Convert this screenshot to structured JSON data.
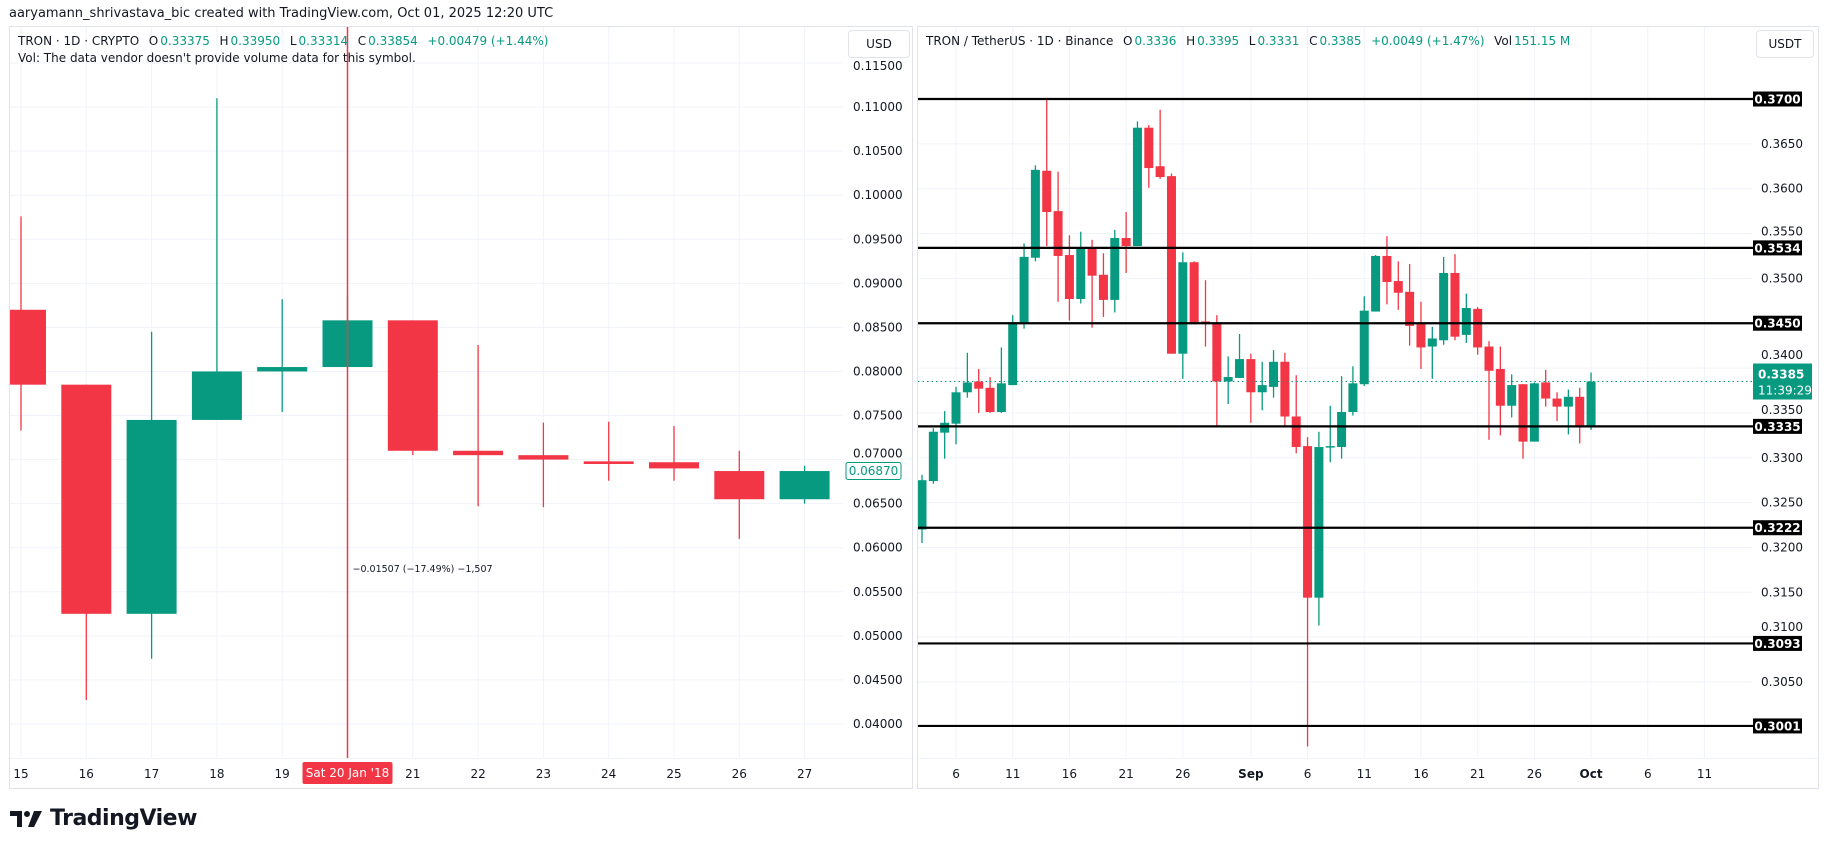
{
  "credit": "aaryamann_shrivastava_bic created with TradingView.com, Oct 01, 2025 12:20 UTC",
  "brand": "TradingView",
  "colors": {
    "up": "#089981",
    "down": "#f23645",
    "level": "#000000",
    "crosshair": "#f23645"
  },
  "left": {
    "header": {
      "symbol": "TRON · 1D · CRYPTO",
      "o_label": "O",
      "o": "0.33375",
      "h_label": "H",
      "h": "0.33950",
      "l_label": "L",
      "l": "0.33314",
      "c_label": "C",
      "c": "0.33854",
      "change": "+0.00479 (+1.44%)"
    },
    "vol_note": "Vol: The data vendor doesn't provide volume data for this symbol.",
    "currency": "USD",
    "last_price": "0.06870",
    "crosshair_date": "Sat 20 Jan '18",
    "crosshair_note": "−0.01507 (−17.49%) −1,507"
  },
  "right": {
    "header": {
      "symbol": "TRON / TetherUS · 1D · Binance",
      "o_label": "O",
      "o": "0.3336",
      "h_label": "H",
      "h": "0.3395",
      "l_label": "L",
      "l": "0.3331",
      "c_label": "C",
      "c": "0.3385",
      "change": "+0.0049 (+1.47%)",
      "vol_label": "Vol",
      "vol": "151.15 M"
    },
    "currency": "USDT",
    "last_price": "0.3385",
    "countdown": "11:39:29"
  },
  "chart_data": [
    {
      "type": "candlestick",
      "interval": "1D",
      "ylim": [
        0.036,
        0.118
      ],
      "grid": true,
      "y_ticks": [
        "0.11500",
        "0.11000",
        "0.10500",
        "0.10000",
        "0.09500",
        "0.09000",
        "0.08500",
        "0.08000",
        "0.07500",
        "0.07000",
        "0.06500",
        "0.06000",
        "0.05500",
        "0.05000",
        "0.04500",
        "0.04000"
      ],
      "x_labels": [
        {
          "day": 15,
          "t": "15"
        },
        {
          "day": 16,
          "t": "16"
        },
        {
          "day": 17,
          "t": "17"
        },
        {
          "day": 18,
          "t": "18"
        },
        {
          "day": 19,
          "t": "19"
        },
        {
          "day": 21,
          "t": "21"
        },
        {
          "day": 22,
          "t": "22"
        },
        {
          "day": 23,
          "t": "23"
        },
        {
          "day": 24,
          "t": "24"
        },
        {
          "day": 25,
          "t": "25"
        },
        {
          "day": 26,
          "t": "26"
        },
        {
          "day": 27,
          "t": "27"
        }
      ],
      "crosshair_day": 20,
      "candles": [
        [
          15,
          0.087,
          0.0976,
          0.0733,
          0.0785
        ],
        [
          16,
          0.0785,
          0.0785,
          0.0427,
          0.0525
        ],
        [
          17,
          0.0525,
          0.0845,
          0.0474,
          0.0745
        ],
        [
          18,
          0.0745,
          0.111,
          0.0745,
          0.08
        ],
        [
          19,
          0.08,
          0.0882,
          0.0754,
          0.0805
        ],
        [
          20,
          0.0805,
          0.0886,
          0.0805,
          0.0858
        ],
        [
          21,
          0.0858,
          0.0858,
          0.0705,
          0.071
        ],
        [
          22,
          0.071,
          0.083,
          0.0647,
          0.0705
        ],
        [
          23,
          0.0705,
          0.0742,
          0.0646,
          0.07
        ],
        [
          24,
          0.0698,
          0.0743,
          0.0676,
          0.0695
        ],
        [
          25,
          0.0697,
          0.0738,
          0.0676,
          0.069
        ],
        [
          26,
          0.0687,
          0.071,
          0.061,
          0.0655
        ],
        [
          27,
          0.0655,
          0.0693,
          0.065,
          0.0687
        ]
      ]
    },
    {
      "type": "candlestick",
      "interval": "1D",
      "ylim": [
        0.2932,
        0.3777
      ],
      "grid": true,
      "y_ticks": [
        "0.3650",
        "0.3600",
        "0.3550",
        "0.3500",
        "0.3400",
        "0.3350",
        "0.3300",
        "0.3250",
        "0.3200",
        "0.3150",
        "0.3100",
        "0.3050"
      ],
      "levels": [
        "0.3700",
        "0.3534",
        "0.3450",
        "0.3335",
        "0.3222",
        "0.3093",
        "0.3001"
      ],
      "x_labels": [
        {
          "date": "2025-08-06",
          "t": "6"
        },
        {
          "date": "2025-08-11",
          "t": "11"
        },
        {
          "date": "2025-08-16",
          "t": "16"
        },
        {
          "date": "2025-08-21",
          "t": "21"
        },
        {
          "date": "2025-08-26",
          "t": "26"
        },
        {
          "date": "2025-09-01",
          "t": "Sep"
        },
        {
          "date": "2025-09-06",
          "t": "6"
        },
        {
          "date": "2025-09-11",
          "t": "11"
        },
        {
          "date": "2025-09-16",
          "t": "16"
        },
        {
          "date": "2025-09-21",
          "t": "21"
        },
        {
          "date": "2025-09-26",
          "t": "26"
        },
        {
          "date": "2025-10-01",
          "t": "Oct"
        },
        {
          "date": "2025-10-06",
          "t": "6"
        },
        {
          "date": "2025-10-11",
          "t": "11"
        }
      ],
      "candles": [
        [
          "2025-08-03",
          0.322,
          0.3281,
          0.3205,
          0.3275
        ],
        [
          "2025-08-04",
          0.3274,
          0.3333,
          0.3271,
          0.3329
        ],
        [
          "2025-08-05",
          0.3328,
          0.3352,
          0.3299,
          0.3339
        ],
        [
          "2025-08-06",
          0.3338,
          0.3379,
          0.3315,
          0.3373
        ],
        [
          "2025-08-07",
          0.3373,
          0.3417,
          0.3367,
          0.3384
        ],
        [
          "2025-08-08",
          0.3385,
          0.3399,
          0.335,
          0.3377
        ],
        [
          "2025-08-09",
          0.3378,
          0.339,
          0.335,
          0.3351
        ],
        [
          "2025-08-10",
          0.3351,
          0.3423,
          0.335,
          0.3383
        ],
        [
          "2025-08-11",
          0.3381,
          0.3459,
          0.3381,
          0.3451
        ],
        [
          "2025-08-12",
          0.3451,
          0.3539,
          0.3444,
          0.3524
        ],
        [
          "2025-08-13",
          0.3523,
          0.3626,
          0.3519,
          0.3621
        ],
        [
          "2025-08-14",
          0.362,
          0.37,
          0.3536,
          0.3574
        ],
        [
          "2025-08-15",
          0.3575,
          0.3619,
          0.3474,
          0.3525
        ],
        [
          "2025-08-16",
          0.3526,
          0.3548,
          0.3453,
          0.3477
        ],
        [
          "2025-08-17",
          0.3477,
          0.3552,
          0.3472,
          0.3534
        ],
        [
          "2025-08-18",
          0.3533,
          0.3543,
          0.3445,
          0.3503
        ],
        [
          "2025-08-19",
          0.3504,
          0.3528,
          0.3457,
          0.3476
        ],
        [
          "2025-08-20",
          0.3476,
          0.3554,
          0.3462,
          0.3545
        ],
        [
          "2025-08-21",
          0.3545,
          0.3574,
          0.3506,
          0.3536
        ],
        [
          "2025-08-22",
          0.3536,
          0.3675,
          0.3536,
          0.3668
        ],
        [
          "2025-08-23",
          0.3668,
          0.3671,
          0.3601,
          0.3623
        ],
        [
          "2025-08-24",
          0.3625,
          0.3688,
          0.3611,
          0.3613
        ],
        [
          "2025-08-25",
          0.3614,
          0.3617,
          0.3416,
          0.3416
        ],
        [
          "2025-08-26",
          0.3416,
          0.3529,
          0.3388,
          0.3518
        ],
        [
          "2025-08-27",
          0.3518,
          0.3519,
          0.3449,
          0.3451
        ],
        [
          "2025-08-28",
          0.3452,
          0.3498,
          0.3424,
          0.3451
        ],
        [
          "2025-08-29",
          0.3451,
          0.3459,
          0.3335,
          0.3385
        ],
        [
          "2025-08-30",
          0.3385,
          0.3413,
          0.336,
          0.339
        ],
        [
          "2025-08-31",
          0.3389,
          0.3438,
          0.3389,
          0.341
        ],
        [
          "2025-09-01",
          0.341,
          0.3416,
          0.3339,
          0.3373
        ],
        [
          "2025-09-02",
          0.3373,
          0.3407,
          0.3353,
          0.3381
        ],
        [
          "2025-09-03",
          0.3379,
          0.342,
          0.3367,
          0.3407
        ],
        [
          "2025-09-04",
          0.3407,
          0.3417,
          0.3336,
          0.3346
        ],
        [
          "2025-09-05",
          0.3346,
          0.3392,
          0.3305,
          0.3312
        ],
        [
          "2025-09-06",
          0.3313,
          0.3323,
          0.2978,
          0.3144
        ],
        [
          "2025-09-07",
          0.3144,
          0.3329,
          0.3113,
          0.3312
        ],
        [
          "2025-09-08",
          0.3312,
          0.3358,
          0.3295,
          0.3313
        ],
        [
          "2025-09-09",
          0.3312,
          0.3391,
          0.3299,
          0.3351
        ],
        [
          "2025-09-10",
          0.3351,
          0.3402,
          0.3347,
          0.3383
        ],
        [
          "2025-09-11",
          0.3382,
          0.348,
          0.338,
          0.3464
        ],
        [
          "2025-09-12",
          0.3463,
          0.3526,
          0.3463,
          0.3525
        ],
        [
          "2025-09-13",
          0.3525,
          0.3547,
          0.3471,
          0.3496
        ],
        [
          "2025-09-14",
          0.3497,
          0.3519,
          0.3465,
          0.3484
        ],
        [
          "2025-09-15",
          0.3485,
          0.3516,
          0.3425,
          0.3447
        ],
        [
          "2025-09-16",
          0.3449,
          0.3474,
          0.3399,
          0.3423
        ],
        [
          "2025-09-17",
          0.3424,
          0.3446,
          0.3388,
          0.3433
        ],
        [
          "2025-09-18",
          0.3431,
          0.3524,
          0.3426,
          0.3506
        ],
        [
          "2025-09-19",
          0.3506,
          0.3527,
          0.3431,
          0.3435
        ],
        [
          "2025-09-20",
          0.3437,
          0.3483,
          0.3428,
          0.3467
        ],
        [
          "2025-09-21",
          0.3466,
          0.3468,
          0.3415,
          0.3423
        ],
        [
          "2025-09-22",
          0.3424,
          0.343,
          0.332,
          0.3397
        ],
        [
          "2025-09-23",
          0.3399,
          0.3424,
          0.3325,
          0.3358
        ],
        [
          "2025-09-24",
          0.3358,
          0.3393,
          0.3345,
          0.3381
        ],
        [
          "2025-09-25",
          0.3382,
          0.3382,
          0.3299,
          0.3318
        ],
        [
          "2025-09-26",
          0.3318,
          0.3384,
          0.3318,
          0.3383
        ],
        [
          "2025-09-27",
          0.3384,
          0.3398,
          0.3357,
          0.3366
        ],
        [
          "2025-09-28",
          0.3366,
          0.3373,
          0.3341,
          0.3357
        ],
        [
          "2025-09-29",
          0.3357,
          0.3376,
          0.3326,
          0.3368
        ],
        [
          "2025-09-30",
          0.3368,
          0.3378,
          0.3316,
          0.3336
        ],
        [
          "2025-10-01",
          0.3336,
          0.3395,
          0.3331,
          0.3385
        ]
      ]
    }
  ]
}
